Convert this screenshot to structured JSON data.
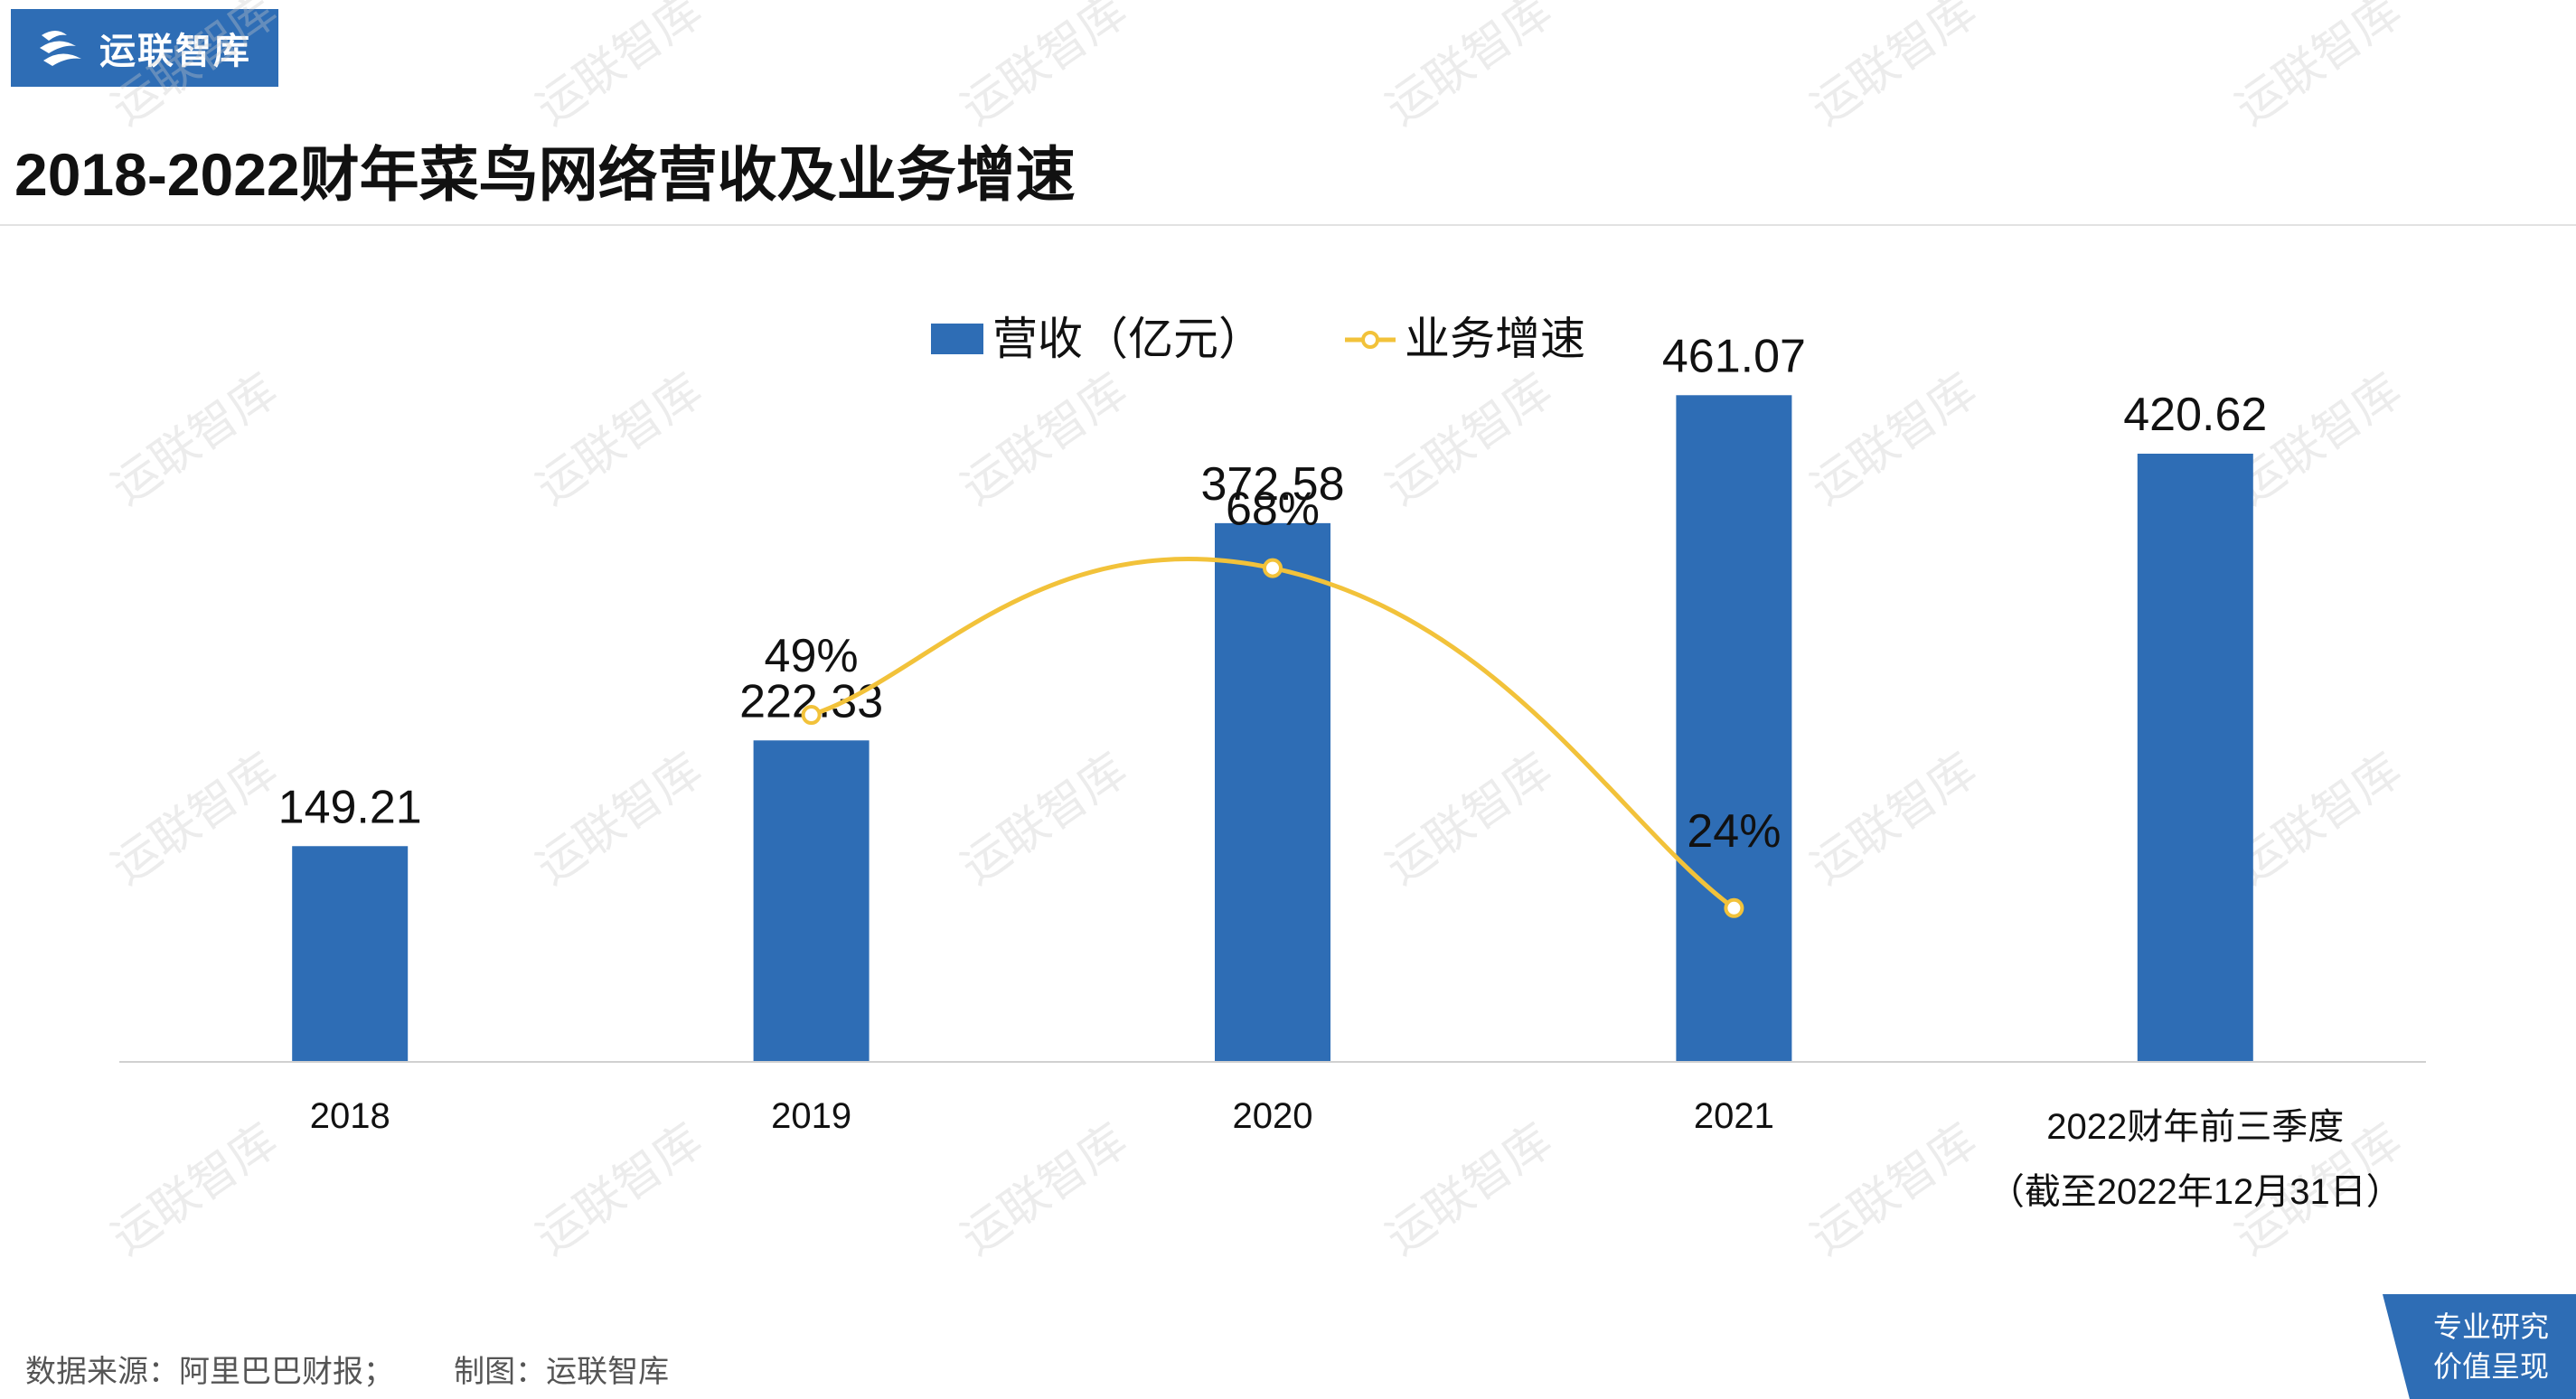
{
  "header": {
    "brand": "运联智库",
    "title": "2018-2022财年菜鸟网络营收及业务增速"
  },
  "footer": {
    "source": "数据来源：阿里巴巴财报；       制图：运联智库",
    "badge_line1": "专业研究",
    "badge_line2": "价值呈现"
  },
  "colors": {
    "bar": "#2e6db5",
    "line": "#f2c23a",
    "brand": "#2e6db5"
  },
  "chart_data": {
    "type": "bar",
    "categories": [
      "2018",
      "2019",
      "2020",
      "2021",
      "2022财年前三季度"
    ],
    "category_sublabels": [
      "",
      "",
      "",
      "",
      "（截至2022年12月31日）"
    ],
    "series": [
      {
        "name": "营收（亿元）",
        "type": "bar",
        "values": [
          149.21,
          222.33,
          372.58,
          461.07,
          420.62
        ],
        "labels": [
          "149.21",
          "222.33",
          "372.58",
          "461.07",
          "420.62"
        ]
      },
      {
        "name": "业务增速",
        "type": "line",
        "smooth": true,
        "values": [
          null,
          49,
          68,
          24,
          null
        ],
        "labels": [
          "",
          "49%",
          "68%",
          "24%",
          ""
        ]
      }
    ],
    "ylim": [
      0,
      500
    ],
    "growth_ylim": [
      0,
      100
    ],
    "legend_position": "top-center",
    "grid": false
  }
}
